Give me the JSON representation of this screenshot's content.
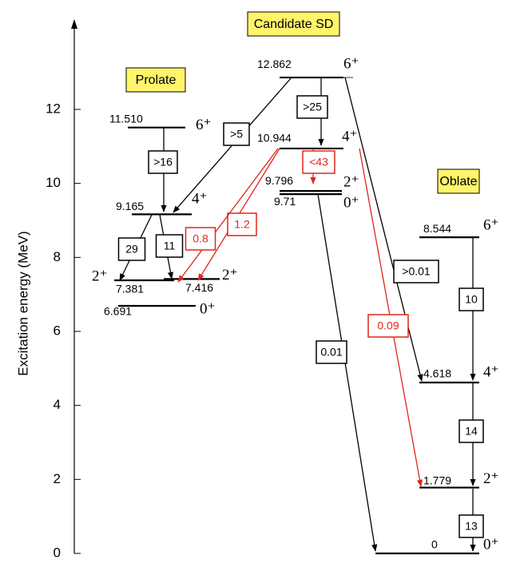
{
  "axis": {
    "label": "Excitation energy (MeV)",
    "ticks": [
      0,
      2,
      4,
      6,
      8,
      10,
      12
    ]
  },
  "groups": [
    {
      "title": "Prolate",
      "levels": [
        {
          "energy": "11.510",
          "spin": "6⁺"
        },
        {
          "energy": "9.165",
          "spin": "4⁺"
        },
        {
          "energy": "7.381",
          "spin": "2⁺"
        },
        {
          "energy": "7.416",
          "spin": "2⁺"
        },
        {
          "energy": "6.691",
          "spin": "0⁺"
        }
      ]
    },
    {
      "title": "Candidate SD",
      "levels": [
        {
          "energy": "12.862",
          "spin": "6⁺"
        },
        {
          "energy": "10.944",
          "spin": "4⁺"
        },
        {
          "energy": "9.796",
          "spin": "2⁺"
        },
        {
          "energy": "9.71",
          "spin": "0⁺"
        }
      ]
    },
    {
      "title": "Oblate",
      "levels": [
        {
          "energy": "8.544",
          "spin": "6⁺"
        },
        {
          "energy": "4.618",
          "spin": "4⁺"
        },
        {
          "energy": "1.779",
          "spin": "2⁺"
        },
        {
          "energy": "0",
          "spin": "0⁺"
        }
      ]
    }
  ],
  "transitions": [
    {
      "label": ">16",
      "color": "#000000"
    },
    {
      "label": ">5",
      "color": "#000000"
    },
    {
      "label": ">25",
      "color": "#000000"
    },
    {
      "label": "<43",
      "color": "#e0261b"
    },
    {
      "label": "1.2",
      "color": "#e0261b"
    },
    {
      "label": "0.8",
      "color": "#e0261b"
    },
    {
      "label": "29",
      "color": "#000000"
    },
    {
      "label": "11",
      "color": "#000000"
    },
    {
      "label": ">0.01",
      "color": "#000000"
    },
    {
      "label": "0.09",
      "color": "#e0261b"
    },
    {
      "label": "0.01",
      "color": "#000000"
    },
    {
      "label": "10",
      "color": "#000000"
    },
    {
      "label": "14",
      "color": "#000000"
    },
    {
      "label": "13",
      "color": "#000000"
    }
  ]
}
